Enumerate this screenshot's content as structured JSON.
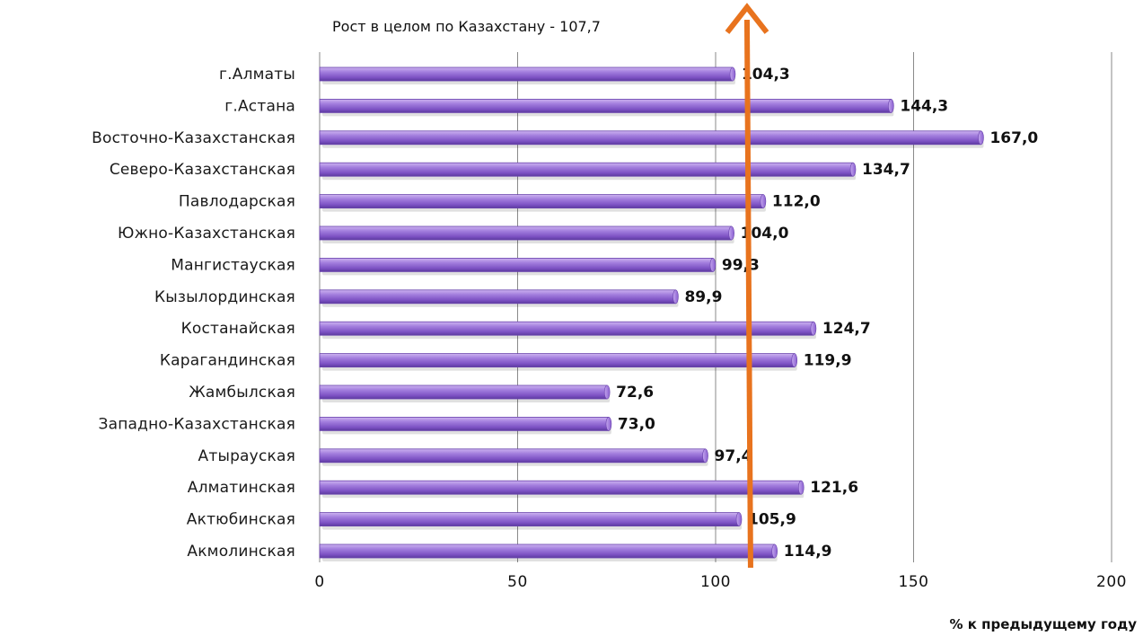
{
  "chart_data": {
    "type": "bar",
    "orientation": "horizontal",
    "categories": [
      "г.Алматы",
      "г.Астана",
      "Восточно-Казахстанская",
      "Северо-Казахстанская",
      "Павлодарская",
      "Южно-Казахстанская",
      "Мангистауская",
      "Кызылординская",
      "Костанайская",
      "Карагандинская",
      "Жамбылская",
      "Западно-Казахстанская",
      "Атырауская",
      "Алматинская",
      "Актюбинская",
      "Акмолинская"
    ],
    "values": [
      104.3,
      144.3,
      167.0,
      134.7,
      112.0,
      104.0,
      99.3,
      89.9,
      124.7,
      119.9,
      72.6,
      73.0,
      97.4,
      121.6,
      105.9,
      114.9
    ],
    "value_labels": [
      "104,3",
      "144,3",
      "167,0",
      "134,7",
      "112,0",
      "104,0",
      "99,3",
      "89,9",
      "124,7",
      "119,9",
      "72,6",
      "73,0",
      "97,4",
      "121,6",
      "105,9",
      "114,9"
    ],
    "xticks": [
      0,
      50,
      100,
      150,
      200
    ],
    "xtick_labels": [
      "0",
      "50",
      "100",
      "150",
      "200"
    ],
    "xlim": [
      0,
      200
    ],
    "xlabel": "% к предыдущему году",
    "grid": "vertical",
    "bar_color": "#9b6fd6",
    "arrow_color": "#e8731e",
    "annotation": {
      "text": "Рост в целом по Казахстану - 107,7",
      "value": 107.7
    }
  }
}
